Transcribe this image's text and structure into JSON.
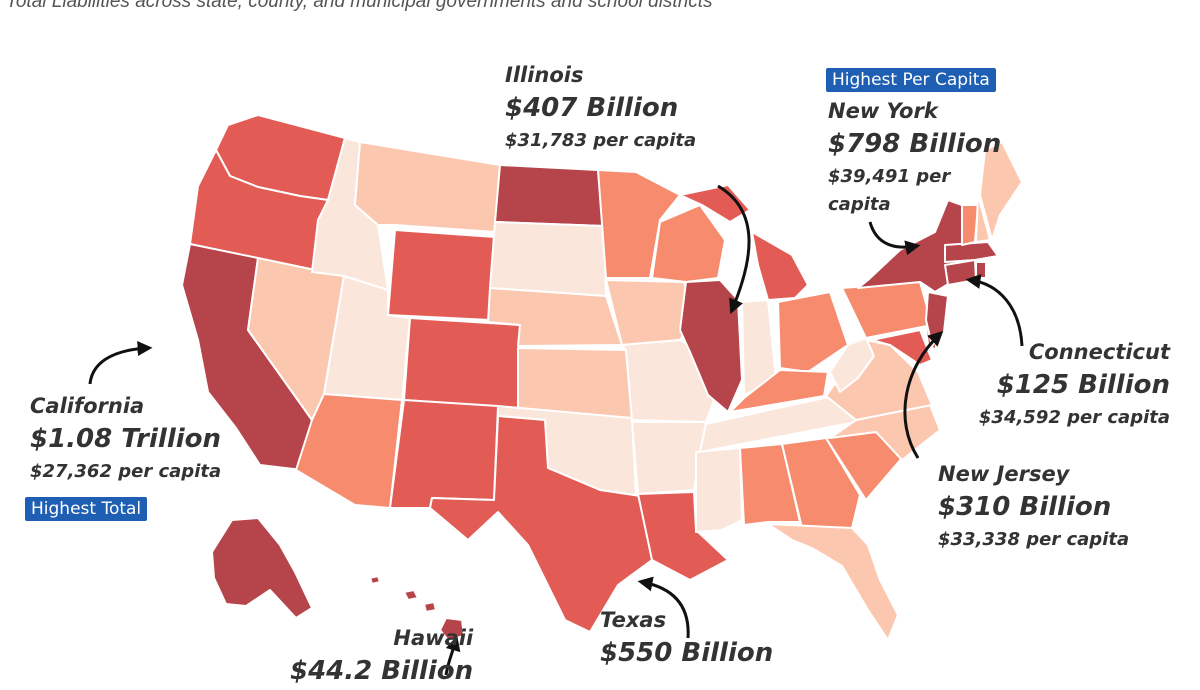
{
  "subtitle": "Total Liabilities across state, county, and municipal governments and school districts",
  "legend": {
    "shades": [
      "#fbe6dc",
      "#fcc7af",
      "#f68b6e",
      "#e25b55",
      "#b6454b"
    ],
    "highest_total_label": "Highest Total",
    "highest_per_capita_label": "Highest Per Capita"
  },
  "callouts": {
    "illinois": {
      "name": "Illinois",
      "total": "$407 Billion",
      "per_capita": "$31,783 per capita"
    },
    "new_york": {
      "name": "New York",
      "total": "$798 Billion",
      "per_capita_1": "$39,491 per",
      "per_capita_2": "capita"
    },
    "california": {
      "name": "California",
      "total": "$1.08 Trillion",
      "per_capita": "$27,362 per capita"
    },
    "connecticut": {
      "name": "Connecticut",
      "total": "$125 Billion",
      "per_capita": "$34,592 per capita"
    },
    "new_jersey": {
      "name": "New Jersey",
      "total": "$310 Billion",
      "per_capita": "$33,338 per capita"
    },
    "texas": {
      "name": "Texas",
      "total": "$550 Billion"
    },
    "hawaii": {
      "name": "Hawaii",
      "total": "$44.2 Billion"
    }
  }
}
